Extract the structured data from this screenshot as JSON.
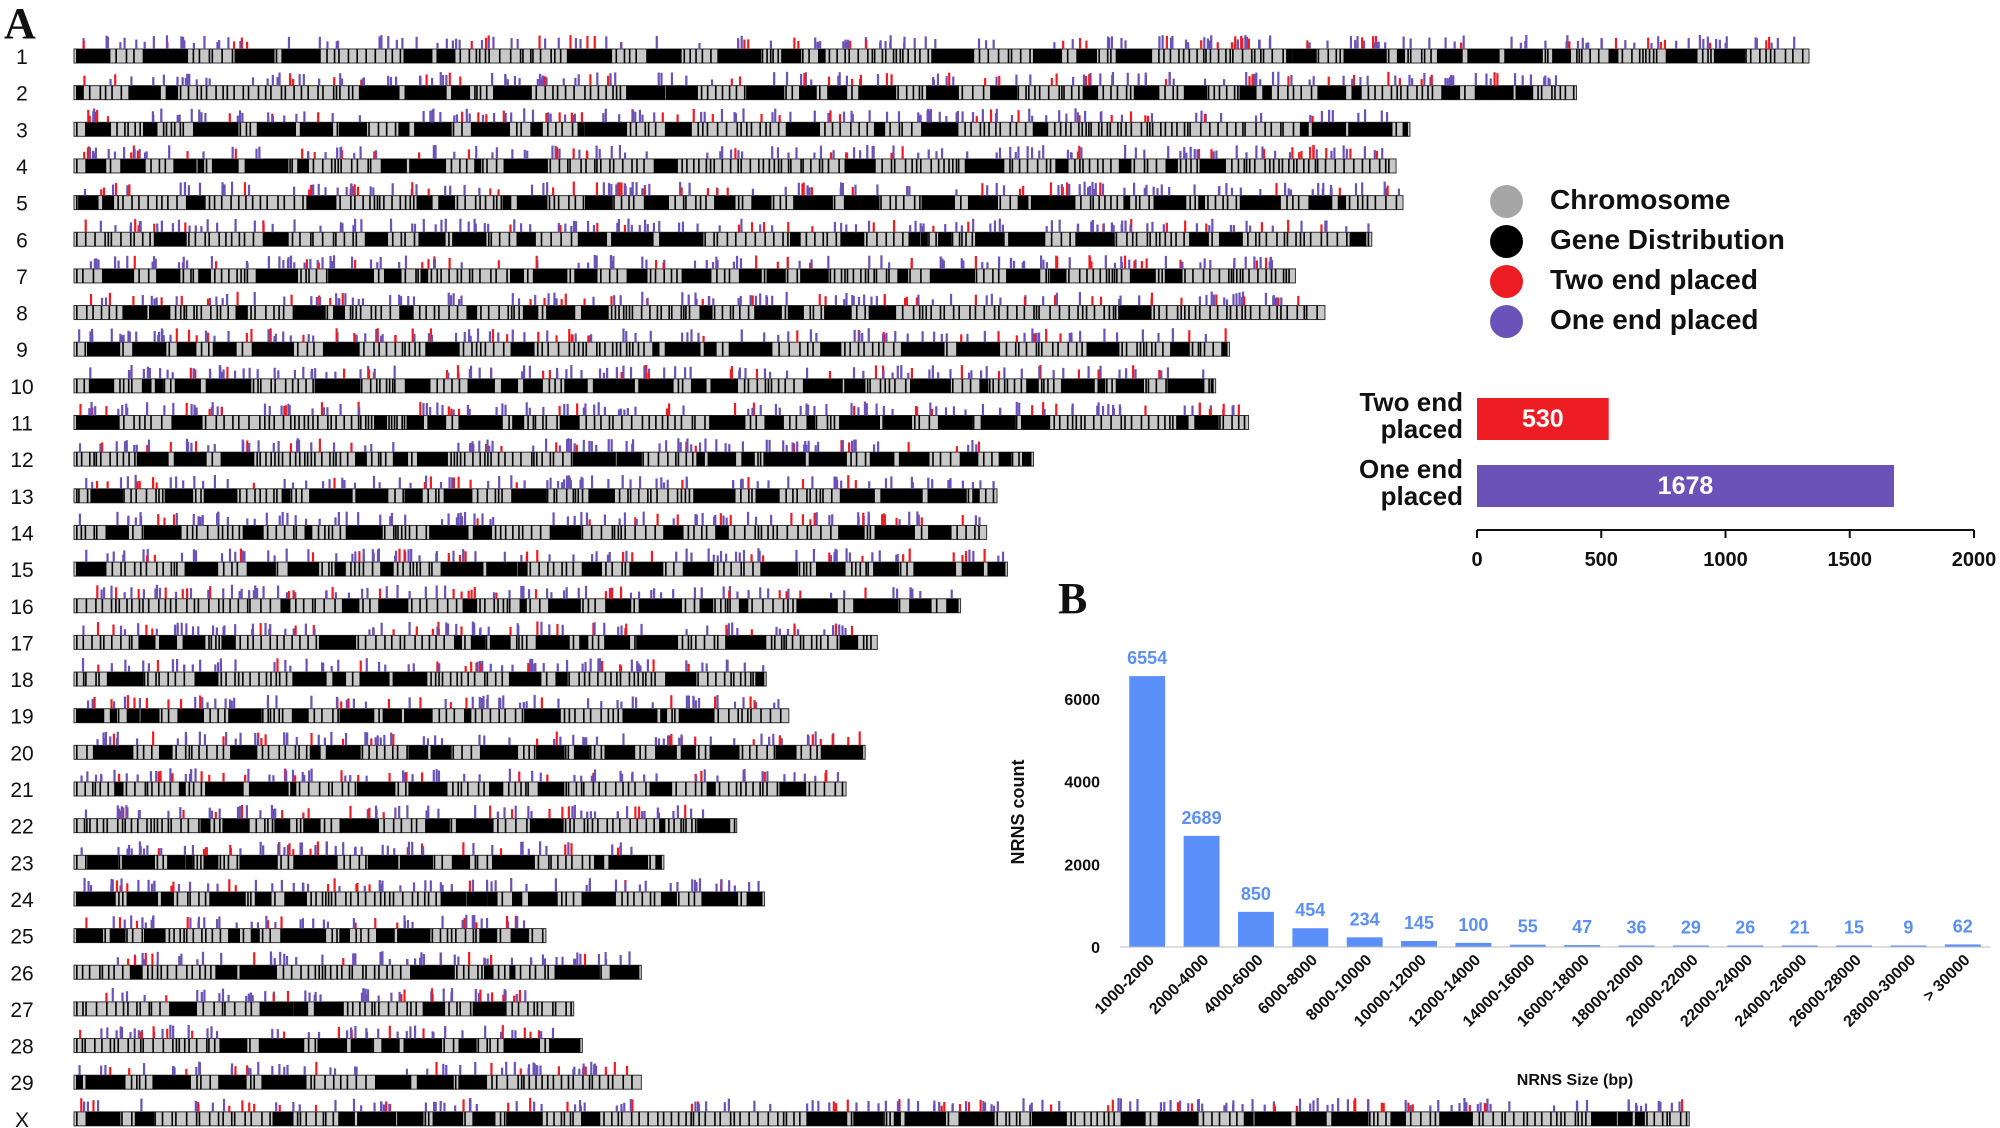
{
  "panels": {
    "a_label": "A",
    "b_label": "B"
  },
  "colors": {
    "chromosome": "#c8c8c8",
    "gene": "#000000",
    "two_end": "#ee1d23",
    "one_end": "#6a52b8",
    "bar_blue": "#5b8ff9"
  },
  "legend": {
    "items": [
      {
        "label": "Chromosome",
        "color": "#a6a6a6"
      },
      {
        "label": "Gene Distribution",
        "color": "#000000"
      },
      {
        "label": "Two end placed",
        "color": "#ee1d23"
      },
      {
        "label": "One end placed",
        "color": "#6a52b8"
      }
    ]
  },
  "chart_data": [
    {
      "type": "ideogram",
      "chromosomes": [
        {
          "name": "1",
          "length": 1.0
        },
        {
          "name": "2",
          "length": 0.866
        },
        {
          "name": "3",
          "length": 0.77
        },
        {
          "name": "4",
          "length": 0.762
        },
        {
          "name": "5",
          "length": 0.766
        },
        {
          "name": "6",
          "length": 0.748
        },
        {
          "name": "7",
          "length": 0.704
        },
        {
          "name": "8",
          "length": 0.721
        },
        {
          "name": "9",
          "length": 0.666
        },
        {
          "name": "10",
          "length": 0.658
        },
        {
          "name": "11",
          "length": 0.677
        },
        {
          "name": "12",
          "length": 0.553
        },
        {
          "name": "13",
          "length": 0.532
        },
        {
          "name": "14",
          "length": 0.526
        },
        {
          "name": "15",
          "length": 0.538
        },
        {
          "name": "16",
          "length": 0.511
        },
        {
          "name": "17",
          "length": 0.463
        },
        {
          "name": "18",
          "length": 0.399
        },
        {
          "name": "19",
          "length": 0.412
        },
        {
          "name": "20",
          "length": 0.456
        },
        {
          "name": "21",
          "length": 0.445
        },
        {
          "name": "22",
          "length": 0.382
        },
        {
          "name": "23",
          "length": 0.34
        },
        {
          "name": "24",
          "length": 0.398
        },
        {
          "name": "25",
          "length": 0.272
        },
        {
          "name": "26",
          "length": 0.327
        },
        {
          "name": "27",
          "length": 0.288
        },
        {
          "name": "28",
          "length": 0.293
        },
        {
          "name": "29",
          "length": 0.327
        },
        {
          "name": "X",
          "length": 0.931
        }
      ]
    },
    {
      "type": "bar",
      "orientation": "horizontal",
      "categories": [
        "Two end\nplaced",
        "One end\nplaced"
      ],
      "values": [
        530,
        1678
      ],
      "value_labels": [
        "530",
        "1678"
      ],
      "colors": [
        "#ee1d23",
        "#6a52b8"
      ],
      "xlim": [
        0,
        2000
      ],
      "xticks": [
        "0",
        "500",
        "1000",
        "1500",
        "2000"
      ]
    },
    {
      "type": "bar",
      "categories": [
        "1000-2000",
        "2000-4000",
        "4000-6000",
        "6000-8000",
        "8000-10000",
        "10000-12000",
        "12000-14000",
        "14000-16000",
        "16000-18000",
        "18000-20000",
        "20000-22000",
        "22000-24000",
        "24000-26000",
        "26000-28000",
        "28000-30000",
        "> 30000"
      ],
      "values": [
        6554,
        2689,
        850,
        454,
        234,
        145,
        100,
        55,
        47,
        36,
        29,
        26,
        21,
        15,
        9,
        62
      ],
      "value_labels": [
        "6554",
        "2689",
        "850",
        "454",
        "234",
        "145",
        "100",
        "55",
        "47",
        "36",
        "29",
        "26",
        "21",
        "15",
        "9",
        "62"
      ],
      "xlabel": "NRNS Size (bp)",
      "ylabel": "NRNS count",
      "ylim": [
        0,
        7500
      ],
      "yticks": [
        "0",
        "2000",
        "4000",
        "6000"
      ],
      "color": "#5b8ff9"
    }
  ]
}
